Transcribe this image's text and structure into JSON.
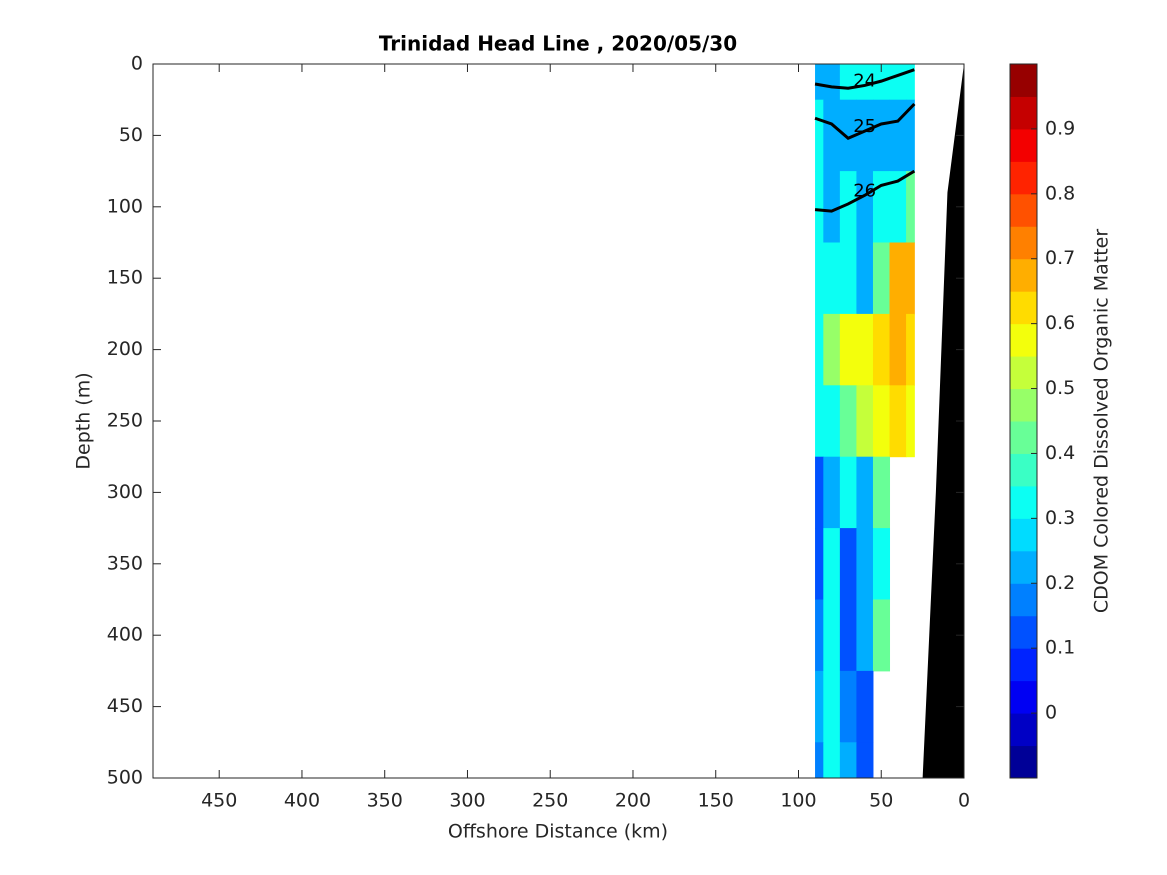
{
  "chart_data": {
    "type": "contour",
    "title": "Trinidad Head Line , 2020/05/30",
    "x_label": "Offshore Distance (km)",
    "y_label": "Depth (m)",
    "xlim": [
      490,
      0
    ],
    "xticks": [
      450,
      400,
      350,
      300,
      250,
      200,
      150,
      100,
      50,
      0
    ],
    "ylim": [
      0,
      500
    ],
    "yticks": [
      0,
      50,
      100,
      150,
      200,
      250,
      300,
      350,
      400,
      450,
      500
    ],
    "y_reversed": true,
    "x": [
      90,
      80,
      70,
      60,
      50,
      40,
      30
    ],
    "y": [
      0,
      50,
      100,
      150,
      200,
      250,
      300,
      350,
      400,
      450,
      500
    ],
    "z": [
      [
        0.25,
        0.25,
        0.3,
        0.3,
        0.3,
        0.3,
        0.3
      ],
      [
        0.3,
        0.2,
        0.25,
        0.2,
        0.2,
        0.25,
        0.25
      ],
      [
        0.3,
        0.25,
        0.3,
        0.25,
        0.3,
        0.35,
        0.4
      ],
      [
        0.3,
        0.3,
        0.35,
        0.2,
        0.4,
        0.7,
        0.7
      ],
      [
        0.35,
        0.45,
        0.6,
        0.6,
        0.65,
        0.7,
        0.65
      ],
      [
        0.3,
        0.35,
        0.4,
        0.55,
        0.6,
        0.65,
        0.6
      ],
      [
        0.1,
        0.25,
        0.3,
        0.2,
        0.4,
        null,
        null
      ],
      [
        0.1,
        0.3,
        0.1,
        0.2,
        0.3,
        null,
        null
      ],
      [
        0.15,
        0.3,
        0.1,
        0.25,
        0.4,
        null,
        null
      ],
      [
        0.2,
        0.3,
        0.15,
        0.1,
        null,
        null,
        null
      ],
      [
        0.15,
        0.3,
        0.2,
        0.1,
        null,
        null,
        null
      ]
    ],
    "contours": [
      {
        "label": "24",
        "x": [
          90,
          80,
          70,
          60,
          50,
          40,
          30
        ],
        "y": [
          14,
          16,
          17,
          15,
          12,
          8,
          4
        ]
      },
      {
        "label": "25",
        "x": [
          90,
          80,
          70,
          60,
          50,
          40,
          30
        ],
        "y": [
          38,
          42,
          52,
          47,
          42,
          40,
          28
        ]
      },
      {
        "label": "26",
        "x": [
          90,
          80,
          70,
          60,
          50,
          40,
          30
        ],
        "y": [
          102,
          103,
          98,
          92,
          85,
          82,
          75
        ]
      }
    ],
    "bathymetry": {
      "x": [
        0,
        10,
        17,
        25,
        0
      ],
      "y": [
        0,
        90,
        300,
        500,
        500
      ],
      "color": "#000000"
    },
    "colorbar": {
      "label": "CDOM Colored Dissolved Organic Matter",
      "lim": [
        -0.1,
        1.0
      ],
      "levels": 22,
      "ticks": [
        0,
        0.1,
        0.2,
        0.3,
        0.4,
        0.5,
        0.6,
        0.7,
        0.8,
        0.9
      ]
    }
  }
}
